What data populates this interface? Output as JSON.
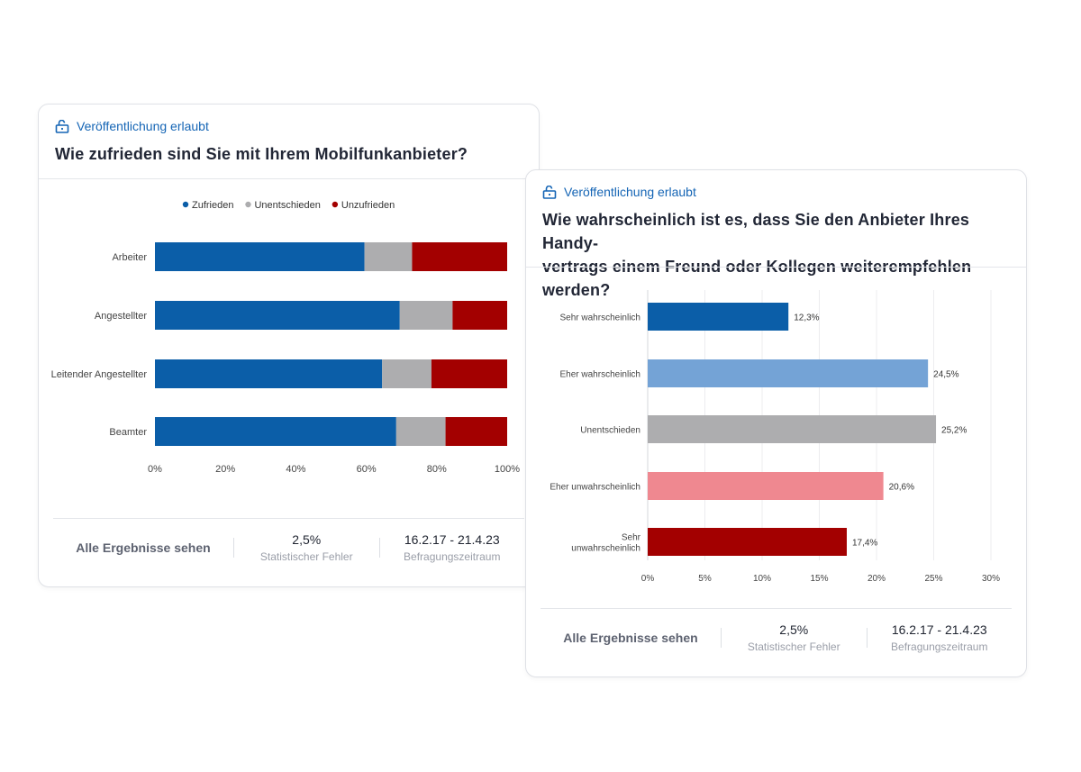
{
  "card1": {
    "badge": "Veröffentlichung erlaubt",
    "question": "Wie zufrieden sind Sie mit Ihrem Mobilfunkanbieter?",
    "footer": {
      "link": "Alle Ergebnisse sehen",
      "error_value": "2,5%",
      "error_label": "Statistischer Fehler",
      "period_value": "16.2.17 - 21.4.23",
      "period_label": "Befragungszeitraum"
    }
  },
  "card2": {
    "badge": "Veröffentlichung erlaubt",
    "question_line1": "Wie wahrscheinlich ist es, dass Sie den Anbieter Ihres Handy-",
    "question_line2": "vertrags einem Freund oder Kollegen weiterempfehlen werden?",
    "footer": {
      "link": "Alle Ergebnisse sehen",
      "error_value": "2,5%",
      "error_label": "Statistischer Fehler",
      "period_value": "16.2.17 - 21.4.23",
      "period_label": "Befragungszeitraum"
    }
  },
  "colors": {
    "zufrieden": "#0b5ea8",
    "unentschieden": "#adadaf",
    "unzufrieden": "#a30000",
    "light_blue": "#74a3d6",
    "pink": "#ef8890",
    "badge_blue": "#1565b5"
  },
  "chart_data": [
    {
      "type": "bar",
      "orientation": "horizontal",
      "stacked": true,
      "categories": [
        "Arbeiter",
        "Angestellter",
        "Leitender Angestellter",
        "Beamter"
      ],
      "series": [
        {
          "name": "Zufrieden",
          "values": [
            59.5,
            69.5,
            64.5,
            68.5
          ]
        },
        {
          "name": "Unentschieden",
          "values": [
            13.5,
            15,
            14,
            14
          ]
        },
        {
          "name": "Unzufrieden",
          "values": [
            27,
            15.5,
            21.5,
            17.5
          ]
        }
      ],
      "xlim": [
        0,
        100
      ],
      "xticks": [
        "0%",
        "20%",
        "40%",
        "60%",
        "80%",
        "100%"
      ],
      "legend": "top-center"
    },
    {
      "type": "bar",
      "orientation": "horizontal",
      "categories": [
        "Sehr wahrscheinlich",
        "Eher wahrscheinlich",
        "Unentschieden",
        "Eher unwahrscheinlich",
        "Sehr unwahrscheinlich"
      ],
      "category_lines": [
        [
          "Sehr wahrscheinlich"
        ],
        [
          "Eher wahrscheinlich"
        ],
        [
          "Unentschieden"
        ],
        [
          "Eher unwahrscheinlich"
        ],
        [
          "Sehr",
          "unwahrscheinlich"
        ]
      ],
      "values": [
        12.3,
        24.5,
        25.2,
        20.6,
        17.4
      ],
      "labels": [
        "12,3%",
        "24,5%",
        "25,2%",
        "20,6%",
        "17,4%"
      ],
      "colors": [
        "#0b5ea8",
        "#74a3d6",
        "#adadaf",
        "#ef8890",
        "#a30000"
      ],
      "xlim": [
        0,
        30
      ],
      "xticks": [
        "0%",
        "5%",
        "10%",
        "15%",
        "20%",
        "25%",
        "30%"
      ]
    }
  ]
}
